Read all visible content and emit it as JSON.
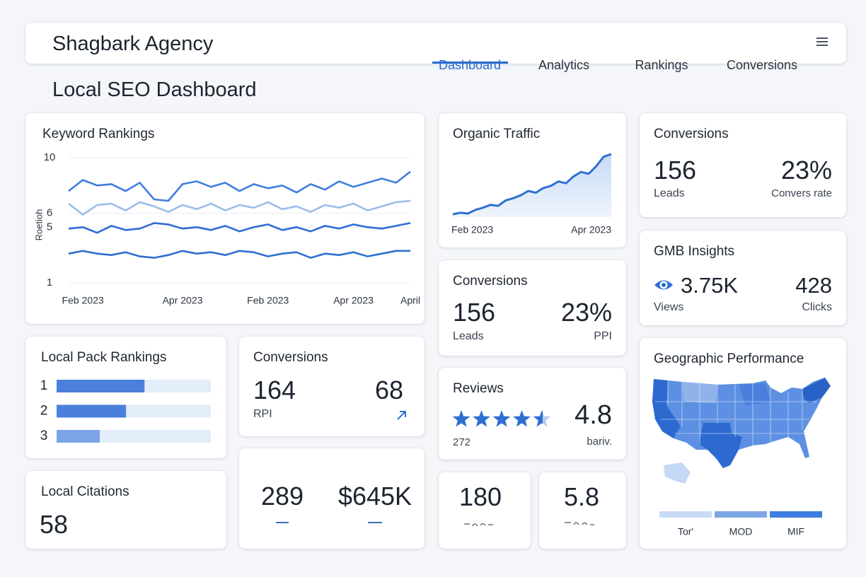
{
  "header": {
    "brand": "Shagbark Agency",
    "nav": [
      "Dashboard",
      "Analytics",
      "Rankings",
      "Conversions"
    ],
    "active_nav": 0
  },
  "page_title": "Local SEO Dashboard",
  "chart_data": [
    {
      "type": "line",
      "title": "Keyword Rankings",
      "y_label": "Roetioh",
      "categories": [
        null,
        "Feb 2023",
        null,
        null,
        null,
        null,
        null,
        null,
        "Apr 2023",
        null,
        null,
        null,
        null,
        null,
        "Feb 2023",
        null,
        null,
        null,
        null,
        null,
        "Apr 2023",
        null,
        null,
        null,
        "April"
      ],
      "series": [
        {
          "color": "#3f7ee0",
          "values": [
            7.6,
            8.4,
            8.0,
            8.1,
            7.6,
            8.2,
            7.0,
            6.9,
            8.1,
            8.3,
            7.9,
            8.2,
            7.6,
            8.1,
            7.8,
            8.0,
            7.5,
            8.1,
            7.7,
            8.3,
            7.9,
            8.2,
            8.5,
            8.2,
            9.0
          ]
        },
        {
          "color": "#9bbdea",
          "values": [
            6.7,
            5.9,
            6.6,
            6.7,
            6.2,
            6.8,
            6.5,
            6.1,
            6.6,
            6.3,
            6.7,
            6.2,
            6.6,
            6.4,
            6.8,
            6.3,
            6.5,
            6.1,
            6.6,
            6.4,
            6.7,
            6.2,
            6.5,
            6.8,
            6.9
          ]
        },
        {
          "color": "#2e6ed6",
          "values": [
            4.9,
            5.0,
            4.6,
            5.1,
            4.8,
            4.9,
            5.3,
            5.2,
            4.9,
            5.0,
            4.8,
            5.1,
            4.7,
            5.0,
            5.2,
            4.8,
            5.0,
            4.7,
            5.1,
            4.9,
            5.2,
            5.0,
            4.9,
            5.1,
            5.3
          ]
        },
        {
          "color": "#2f6fd2",
          "values": [
            3.1,
            3.3,
            3.1,
            3.0,
            3.2,
            2.9,
            2.8,
            3.0,
            3.3,
            3.1,
            3.2,
            3.0,
            3.3,
            3.2,
            2.9,
            3.1,
            3.2,
            2.8,
            3.1,
            3.0,
            3.2,
            2.9,
            3.1,
            3.3,
            3.3
          ]
        }
      ],
      "ylim": [
        1,
        10
      ],
      "yticks": [
        10,
        6,
        5,
        1
      ],
      "grid": true
    },
    {
      "type": "area",
      "title": "Organic Traffic",
      "categories": [
        "Feb 2023",
        null,
        null,
        null,
        null,
        null,
        null,
        null,
        null,
        null,
        null,
        null,
        null,
        null,
        null,
        null,
        null,
        null,
        null,
        null,
        null,
        "Apr 2023"
      ],
      "series": [
        {
          "color": "#2f6fd2",
          "values": [
            1.0,
            1.4,
            1.2,
            2.2,
            2.8,
            3.6,
            3.3,
            4.8,
            5.4,
            6.2,
            7.4,
            6.9,
            8.2,
            8.8,
            10.0,
            9.5,
            11.4,
            12.6,
            12.1,
            14.2,
            16.8,
            17.5
          ]
        }
      ]
    },
    {
      "type": "bar",
      "orientation": "horizontal",
      "title": "Local Pack Rankings",
      "categories": [
        "1",
        "2",
        "3"
      ],
      "values": [
        57,
        45,
        28
      ],
      "colors": [
        "#4a80dc",
        "#4a80dc",
        "#7ba3e8"
      ],
      "xlim": [
        0,
        100
      ]
    }
  ],
  "cards": {
    "conversions_top": {
      "title": "Conversions",
      "metrics": [
        {
          "value": "156",
          "label": "Leads"
        },
        {
          "value": "23%",
          "label": "Convers rate"
        }
      ]
    },
    "conversions_mid": {
      "title": "Conversions",
      "metrics": [
        {
          "value": "156",
          "label": "Leads"
        },
        {
          "value": "23%",
          "label": "PPI"
        }
      ]
    },
    "gmb": {
      "title": "GMB Insights",
      "metrics": [
        {
          "value": "3.75K",
          "label": "Views"
        },
        {
          "value": "428",
          "label": "Clicks"
        }
      ]
    },
    "conversions_small": {
      "title": "Conversions",
      "metrics": [
        {
          "value": "164",
          "label": "RPI"
        },
        {
          "value": "68"
        }
      ]
    },
    "reviews": {
      "title": "Reviews",
      "count": "272",
      "rating": "4.8",
      "note": "bariv."
    },
    "citations": {
      "title": "Local Citations",
      "value": "58"
    },
    "totals": {
      "values": [
        "289",
        "$645K"
      ]
    },
    "small_a": {
      "value": "180"
    },
    "small_b": {
      "value": "5.8"
    },
    "geo": {
      "title": "Geographic Performance",
      "legend": [
        {
          "label": "Tor'",
          "color": "#c9dbf5"
        },
        {
          "label": "MOD",
          "color": "#7ea7e6"
        },
        {
          "label": "MIF",
          "color": "#3f7ee0"
        }
      ]
    }
  }
}
